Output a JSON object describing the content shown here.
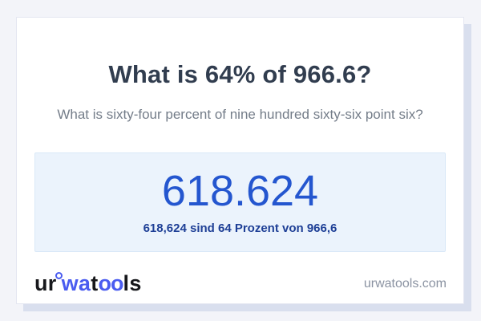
{
  "page": {
    "background_color": "#f3f4f9",
    "card_shadow_color": "#d9dfee"
  },
  "question": {
    "title": "What is 64% of 966.6?",
    "subtitle": "What is sixty-four percent of nine hundred sixty-six point six?"
  },
  "answer": {
    "value": "618.624",
    "description": "618,624 sind 64 Prozent von 966,6",
    "value_color": "#2456cf",
    "description_color": "#1e3f96",
    "box_background": "#ebf3fc"
  },
  "logo": {
    "brand_blue": "#4a5cf0",
    "segments": [
      {
        "text": "ur",
        "color": "#17181c"
      },
      {
        "text": "wa",
        "color": "#4a5cf0"
      },
      {
        "text": "t",
        "color": "#17181c"
      },
      {
        "text": "oo",
        "color": "#4a5cf0"
      },
      {
        "text": "ls",
        "color": "#17181c"
      }
    ]
  },
  "footer": {
    "site_url_text": "urwatools.com"
  }
}
